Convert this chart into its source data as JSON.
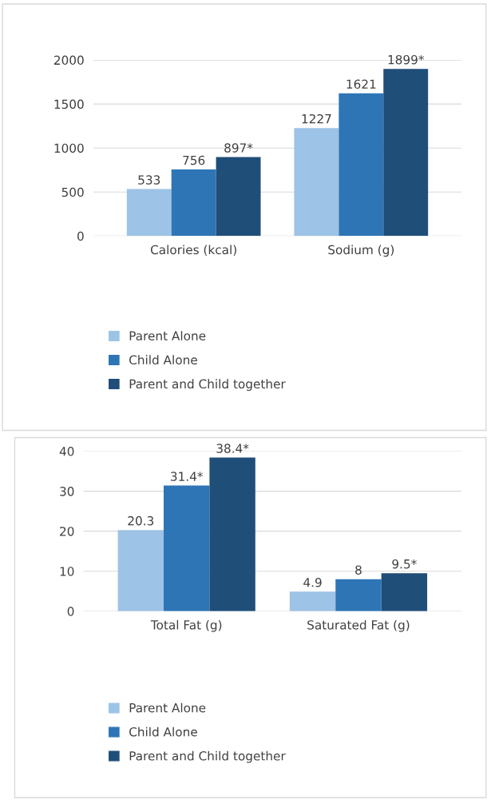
{
  "chart_data": [
    {
      "type": "bar",
      "categories": [
        "Calories (kcal)",
        "Sodium (g)"
      ],
      "series": [
        {
          "name": "Parent Alone",
          "color": "#9dc3e6",
          "values": [
            533,
            1227
          ],
          "value_labels": [
            "533",
            "1227"
          ]
        },
        {
          "name": "Child Alone",
          "color": "#2e75b6",
          "values": [
            756,
            1621
          ],
          "value_labels": [
            "756",
            "1621"
          ]
        },
        {
          "name": "Parent and Child together",
          "color": "#1f4e79",
          "values": [
            897,
            1899
          ],
          "value_labels": [
            "897*",
            "1899*"
          ]
        }
      ],
      "ylim": [
        0,
        2000
      ],
      "yticks": [
        0,
        500,
        1000,
        1500,
        2000
      ],
      "grid": "y",
      "legend": "bottom"
    },
    {
      "type": "bar",
      "categories": [
        "Total Fat (g)",
        "Saturated Fat (g)"
      ],
      "series": [
        {
          "name": "Parent Alone",
          "color": "#9dc3e6",
          "values": [
            20.3,
            4.9
          ],
          "value_labels": [
            "20.3",
            "4.9"
          ]
        },
        {
          "name": "Child Alone",
          "color": "#2e75b6",
          "values": [
            31.4,
            8
          ],
          "value_labels": [
            "31.4*",
            "8"
          ]
        },
        {
          "name": "Parent and Child together",
          "color": "#1f4e79",
          "values": [
            38.4,
            9.5
          ],
          "value_labels": [
            "38.4*",
            "9.5*"
          ]
        }
      ],
      "ylim": [
        0,
        40
      ],
      "yticks": [
        0,
        10,
        20,
        30,
        40
      ],
      "grid": "y",
      "legend": "bottom"
    }
  ]
}
